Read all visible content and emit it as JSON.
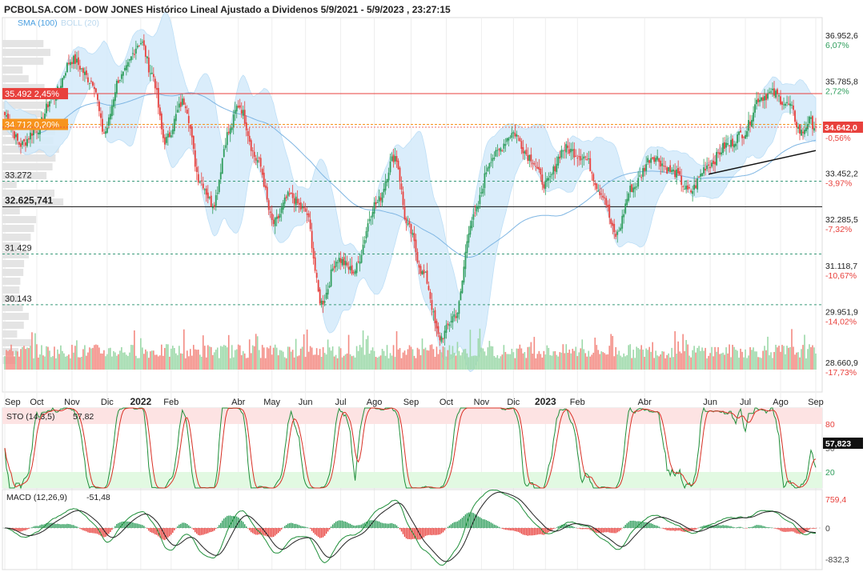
{
  "header": {
    "title": "PCBOLSA.COM - DOW JONES Histórico Lineal Ajustado a Dividenos 5/9/2021 - 5/9/2023 , 23:27:15",
    "indicator_sma": "SMA (100)",
    "indicator_boll": "BOLL (20)"
  },
  "colors": {
    "up": "#2e9d5b",
    "down": "#e8403c",
    "boll_fill": "#d6ecfb",
    "sma": "#7fb6e3",
    "resistance": "#e8403c",
    "level_orange": "#f7941d",
    "dashed_green": "#3a9a7a",
    "neg_pct": "#e8403c",
    "pos_pct": "#2e9d5b",
    "sto_overbought_zone": "#fde3e3",
    "sto_oversold_zone": "#e2f9e2"
  },
  "chart_data": [
    {
      "type": "candlestick",
      "title": "PCBOLSA.COM - DOW JONES Histórico Lineal Ajustado a Dividenos 5/9/2021 - 5/9/2023 , 23:27:15",
      "y_ticks": [
        {
          "value": 36952.6,
          "label": "36.952,6",
          "pct": "6,07%"
        },
        {
          "value": 35785.8,
          "label": "35.785,8",
          "pct": "2,72%"
        },
        {
          "value": 33452.2,
          "label": "33.452,2",
          "pct": "-3,97%"
        },
        {
          "value": 32285.5,
          "label": "32.285,5",
          "pct": "-7,32%"
        },
        {
          "value": 31118.7,
          "label": "31.118,7",
          "pct": "-10,67%"
        },
        {
          "value": 29951.9,
          "label": "29.951,9",
          "pct": "-14,02%"
        },
        {
          "value": 28660.9,
          "label": "28.660,9",
          "pct": "-17,73%"
        }
      ],
      "last_price": {
        "value": 34642.0,
        "label": "34.642,0",
        "pct": "-0,56%"
      },
      "levels": [
        {
          "value": 35492,
          "label": "35.492",
          "pct": "2,45%",
          "style": "solid-red"
        },
        {
          "value": 34712,
          "label": "34.712",
          "pct": "0,20%",
          "style": "dashed-orange"
        },
        {
          "value": 33272,
          "label": "33.272",
          "style": "dashed-green"
        },
        {
          "value": 32625.741,
          "label": "32.625,741",
          "style": "solid-black"
        },
        {
          "value": 31429,
          "label": "31.429",
          "style": "dashed-green"
        },
        {
          "value": 30143,
          "label": "30.143",
          "style": "dashed-green"
        }
      ],
      "x_labels": [
        "Sep",
        "Oct",
        "Nov",
        "Dic",
        "2022",
        "Feb",
        "Abr",
        "May",
        "Jun",
        "Jul",
        "Ago",
        "Sep",
        "Oct",
        "Nov",
        "Dic",
        "2023",
        "Feb",
        "Abr",
        "Jun",
        "Jul",
        "Ago",
        "Sep"
      ],
      "x_label_positions": [
        0,
        20,
        42,
        64,
        85,
        104,
        146,
        167,
        188,
        210,
        231,
        254,
        276,
        298,
        318,
        338,
        358,
        400,
        441,
        463,
        485,
        507
      ],
      "path_anchors": [
        {
          "day": 0,
          "close": 34950
        },
        {
          "day": 10,
          "close": 34200
        },
        {
          "day": 20,
          "close": 34600
        },
        {
          "day": 30,
          "close": 35400
        },
        {
          "day": 42,
          "close": 36350
        },
        {
          "day": 55,
          "close": 35800
        },
        {
          "day": 62,
          "close": 34500
        },
        {
          "day": 72,
          "close": 35900
        },
        {
          "day": 85,
          "close": 36800
        },
        {
          "day": 92,
          "close": 36000
        },
        {
          "day": 100,
          "close": 34300
        },
        {
          "day": 112,
          "close": 35300
        },
        {
          "day": 122,
          "close": 33300
        },
        {
          "day": 130,
          "close": 32700
        },
        {
          "day": 140,
          "close": 34500
        },
        {
          "day": 146,
          "close": 35200
        },
        {
          "day": 158,
          "close": 33800
        },
        {
          "day": 168,
          "close": 32200
        },
        {
          "day": 178,
          "close": 32900
        },
        {
          "day": 188,
          "close": 32500
        },
        {
          "day": 198,
          "close": 30200
        },
        {
          "day": 208,
          "close": 31300
        },
        {
          "day": 218,
          "close": 31000
        },
        {
          "day": 232,
          "close": 32700
        },
        {
          "day": 244,
          "close": 33900
        },
        {
          "day": 252,
          "close": 32100
        },
        {
          "day": 262,
          "close": 30900
        },
        {
          "day": 272,
          "close": 29300
        },
        {
          "day": 282,
          "close": 29900
        },
        {
          "day": 292,
          "close": 32300
        },
        {
          "day": 305,
          "close": 33900
        },
        {
          "day": 318,
          "close": 34500
        },
        {
          "day": 328,
          "close": 33900
        },
        {
          "day": 338,
          "close": 33200
        },
        {
          "day": 350,
          "close": 34100
        },
        {
          "day": 362,
          "close": 33900
        },
        {
          "day": 373,
          "close": 33000
        },
        {
          "day": 382,
          "close": 31900
        },
        {
          "day": 392,
          "close": 33100
        },
        {
          "day": 405,
          "close": 33900
        },
        {
          "day": 418,
          "close": 33500
        },
        {
          "day": 428,
          "close": 33000
        },
        {
          "day": 440,
          "close": 33700
        },
        {
          "day": 452,
          "close": 34200
        },
        {
          "day": 462,
          "close": 34500
        },
        {
          "day": 472,
          "close": 35400
        },
        {
          "day": 480,
          "close": 35500
        },
        {
          "day": 490,
          "close": 35200
        },
        {
          "day": 498,
          "close": 34500
        },
        {
          "day": 503,
          "close": 34800
        },
        {
          "day": 507,
          "close": 34642
        }
      ],
      "trendline": [
        {
          "day": 440,
          "value": 33450
        },
        {
          "day": 507,
          "value": 34050
        }
      ]
    },
    {
      "type": "line",
      "title": "STO (14,3,5)",
      "current_value": "57,82",
      "current_label": "57,823",
      "levels": [
        80,
        50,
        20
      ],
      "level_labels": [
        "80",
        "50",
        "20"
      ],
      "ylim": [
        0,
        100
      ]
    },
    {
      "type": "line",
      "title": "MACD (12,26,9)",
      "current_value": "-51,48",
      "y_labels": [
        "759,4",
        "0",
        "-832,3"
      ],
      "ylim": [
        -832.3,
        759.4
      ]
    }
  ]
}
